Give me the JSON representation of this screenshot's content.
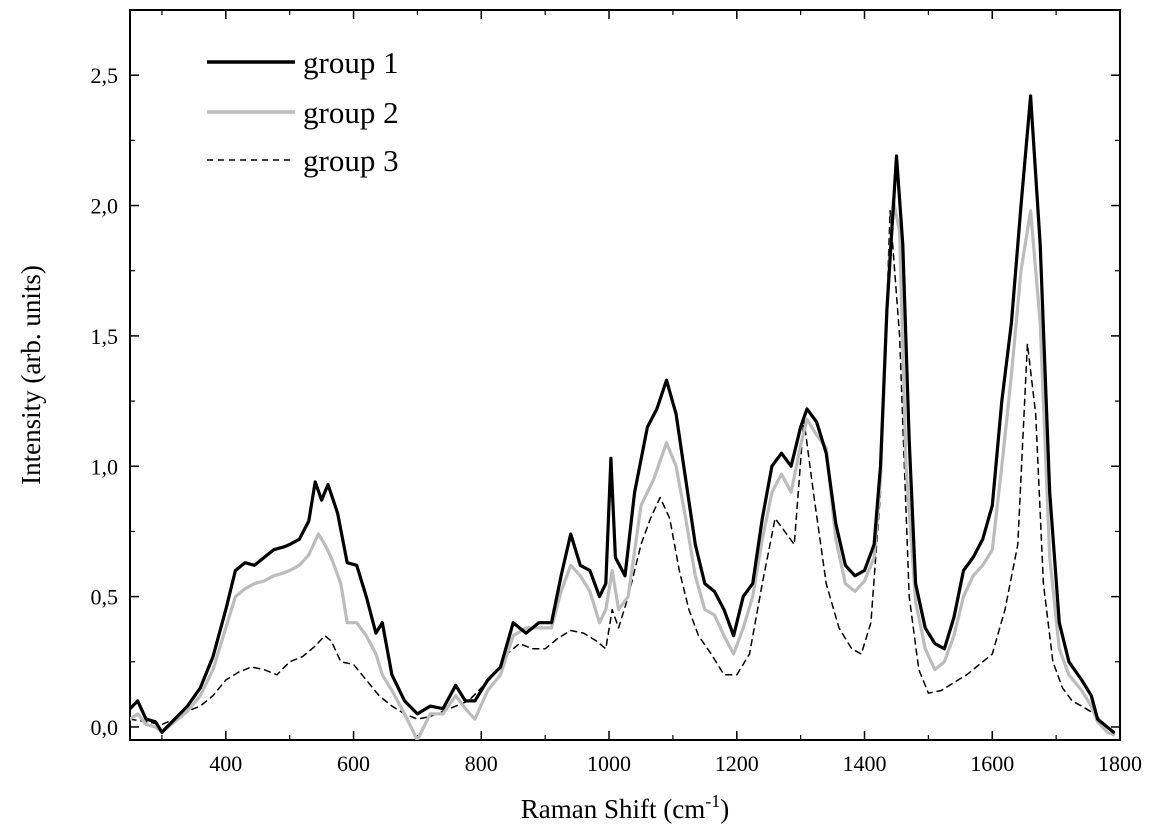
{
  "chart_data": {
    "type": "line",
    "xlabel_main": "Raman Shift (cm",
    "xlabel_sup": "-1",
    "xlabel_end": ")",
    "ylabel": "Intensity (arb. units)",
    "xlim": [
      250,
      1800
    ],
    "ylim": [
      -0.05,
      2.75
    ],
    "xticks": [
      400,
      600,
      800,
      1000,
      1200,
      1400,
      1600,
      1800
    ],
    "xtick_labels": [
      "400",
      "600",
      "800",
      "1000",
      "1200",
      "1400",
      "1600",
      "1800"
    ],
    "yticks": [
      0.0,
      0.5,
      1.0,
      1.5,
      2.0,
      2.5
    ],
    "ytick_labels": [
      "0,0",
      "0,5",
      "1,0",
      "1,5",
      "2,0",
      "2,5"
    ],
    "grid": false,
    "legend_position": "top-left",
    "series": [
      {
        "name": "group 1",
        "color": "#000000",
        "dash": "solid",
        "points": [
          [
            250,
            0.07
          ],
          [
            262,
            0.1
          ],
          [
            275,
            0.03
          ],
          [
            290,
            0.02
          ],
          [
            300,
            -0.02
          ],
          [
            320,
            0.03
          ],
          [
            340,
            0.08
          ],
          [
            360,
            0.15
          ],
          [
            380,
            0.27
          ],
          [
            400,
            0.45
          ],
          [
            415,
            0.6
          ],
          [
            430,
            0.63
          ],
          [
            445,
            0.62
          ],
          [
            460,
            0.65
          ],
          [
            475,
            0.68
          ],
          [
            490,
            0.69
          ],
          [
            500,
            0.7
          ],
          [
            515,
            0.72
          ],
          [
            530,
            0.79
          ],
          [
            540,
            0.94
          ],
          [
            550,
            0.87
          ],
          [
            560,
            0.93
          ],
          [
            575,
            0.82
          ],
          [
            590,
            0.63
          ],
          [
            605,
            0.62
          ],
          [
            620,
            0.5
          ],
          [
            635,
            0.36
          ],
          [
            645,
            0.4
          ],
          [
            660,
            0.2
          ],
          [
            680,
            0.1
          ],
          [
            700,
            0.05
          ],
          [
            720,
            0.08
          ],
          [
            740,
            0.07
          ],
          [
            760,
            0.16
          ],
          [
            775,
            0.1
          ],
          [
            790,
            0.1
          ],
          [
            810,
            0.18
          ],
          [
            830,
            0.23
          ],
          [
            850,
            0.4
          ],
          [
            870,
            0.36
          ],
          [
            890,
            0.4
          ],
          [
            910,
            0.4
          ],
          [
            925,
            0.58
          ],
          [
            940,
            0.74
          ],
          [
            955,
            0.62
          ],
          [
            970,
            0.6
          ],
          [
            985,
            0.5
          ],
          [
            995,
            0.55
          ],
          [
            1003,
            1.03
          ],
          [
            1010,
            0.65
          ],
          [
            1025,
            0.58
          ],
          [
            1040,
            0.9
          ],
          [
            1060,
            1.15
          ],
          [
            1075,
            1.22
          ],
          [
            1090,
            1.33
          ],
          [
            1105,
            1.2
          ],
          [
            1120,
            0.95
          ],
          [
            1135,
            0.7
          ],
          [
            1150,
            0.55
          ],
          [
            1165,
            0.52
          ],
          [
            1180,
            0.45
          ],
          [
            1195,
            0.35
          ],
          [
            1210,
            0.5
          ],
          [
            1225,
            0.55
          ],
          [
            1240,
            0.8
          ],
          [
            1255,
            1.0
          ],
          [
            1270,
            1.05
          ],
          [
            1285,
            1.0
          ],
          [
            1300,
            1.15
          ],
          [
            1310,
            1.22
          ],
          [
            1325,
            1.17
          ],
          [
            1340,
            1.05
          ],
          [
            1355,
            0.78
          ],
          [
            1370,
            0.62
          ],
          [
            1385,
            0.58
          ],
          [
            1400,
            0.6
          ],
          [
            1415,
            0.7
          ],
          [
            1425,
            1.0
          ],
          [
            1435,
            1.6
          ],
          [
            1450,
            2.19
          ],
          [
            1460,
            1.85
          ],
          [
            1470,
            1.1
          ],
          [
            1480,
            0.55
          ],
          [
            1495,
            0.38
          ],
          [
            1510,
            0.32
          ],
          [
            1525,
            0.3
          ],
          [
            1540,
            0.42
          ],
          [
            1555,
            0.6
          ],
          [
            1570,
            0.65
          ],
          [
            1585,
            0.72
          ],
          [
            1600,
            0.85
          ],
          [
            1615,
            1.25
          ],
          [
            1630,
            1.55
          ],
          [
            1645,
            2.0
          ],
          [
            1660,
            2.42
          ],
          [
            1675,
            1.85
          ],
          [
            1690,
            0.9
          ],
          [
            1705,
            0.4
          ],
          [
            1720,
            0.25
          ],
          [
            1740,
            0.18
          ],
          [
            1755,
            0.12
          ],
          [
            1765,
            0.03
          ],
          [
            1780,
            0.0
          ],
          [
            1790,
            -0.02
          ]
        ]
      },
      {
        "name": "group 2",
        "color": "#bcbcbc",
        "dash": "solid",
        "points": [
          [
            250,
            0.03
          ],
          [
            262,
            0.05
          ],
          [
            275,
            0.01
          ],
          [
            290,
            0.0
          ],
          [
            300,
            -0.02
          ],
          [
            320,
            0.02
          ],
          [
            340,
            0.06
          ],
          [
            360,
            0.12
          ],
          [
            380,
            0.22
          ],
          [
            400,
            0.38
          ],
          [
            415,
            0.5
          ],
          [
            430,
            0.53
          ],
          [
            445,
            0.55
          ],
          [
            460,
            0.56
          ],
          [
            475,
            0.58
          ],
          [
            490,
            0.59
          ],
          [
            500,
            0.6
          ],
          [
            515,
            0.62
          ],
          [
            530,
            0.66
          ],
          [
            545,
            0.74
          ],
          [
            555,
            0.7
          ],
          [
            565,
            0.65
          ],
          [
            580,
            0.55
          ],
          [
            590,
            0.4
          ],
          [
            605,
            0.4
          ],
          [
            620,
            0.35
          ],
          [
            635,
            0.28
          ],
          [
            645,
            0.2
          ],
          [
            660,
            0.14
          ],
          [
            680,
            0.05
          ],
          [
            700,
            -0.05
          ],
          [
            720,
            0.05
          ],
          [
            740,
            0.05
          ],
          [
            760,
            0.12
          ],
          [
            775,
            0.07
          ],
          [
            790,
            0.03
          ],
          [
            810,
            0.14
          ],
          [
            830,
            0.2
          ],
          [
            850,
            0.35
          ],
          [
            870,
            0.38
          ],
          [
            890,
            0.38
          ],
          [
            910,
            0.38
          ],
          [
            925,
            0.52
          ],
          [
            940,
            0.62
          ],
          [
            955,
            0.58
          ],
          [
            970,
            0.52
          ],
          [
            985,
            0.4
          ],
          [
            995,
            0.45
          ],
          [
            1005,
            0.6
          ],
          [
            1015,
            0.45
          ],
          [
            1030,
            0.5
          ],
          [
            1050,
            0.85
          ],
          [
            1070,
            0.95
          ],
          [
            1090,
            1.09
          ],
          [
            1105,
            1.0
          ],
          [
            1120,
            0.8
          ],
          [
            1135,
            0.58
          ],
          [
            1150,
            0.45
          ],
          [
            1165,
            0.43
          ],
          [
            1180,
            0.35
          ],
          [
            1195,
            0.28
          ],
          [
            1210,
            0.38
          ],
          [
            1225,
            0.5
          ],
          [
            1240,
            0.72
          ],
          [
            1255,
            0.9
          ],
          [
            1270,
            0.97
          ],
          [
            1285,
            0.9
          ],
          [
            1300,
            1.08
          ],
          [
            1310,
            1.18
          ],
          [
            1325,
            1.12
          ],
          [
            1340,
            1.07
          ],
          [
            1355,
            0.72
          ],
          [
            1370,
            0.55
          ],
          [
            1385,
            0.52
          ],
          [
            1400,
            0.56
          ],
          [
            1415,
            0.65
          ],
          [
            1425,
            0.95
          ],
          [
            1435,
            1.6
          ],
          [
            1445,
            2.02
          ],
          [
            1455,
            1.9
          ],
          [
            1465,
            1.0
          ],
          [
            1480,
            0.48
          ],
          [
            1495,
            0.3
          ],
          [
            1510,
            0.22
          ],
          [
            1525,
            0.25
          ],
          [
            1540,
            0.35
          ],
          [
            1555,
            0.5
          ],
          [
            1570,
            0.58
          ],
          [
            1585,
            0.62
          ],
          [
            1600,
            0.68
          ],
          [
            1615,
            1.0
          ],
          [
            1630,
            1.35
          ],
          [
            1645,
            1.75
          ],
          [
            1660,
            1.98
          ],
          [
            1675,
            1.55
          ],
          [
            1690,
            0.65
          ],
          [
            1705,
            0.3
          ],
          [
            1720,
            0.2
          ],
          [
            1740,
            0.14
          ],
          [
            1755,
            0.08
          ],
          [
            1765,
            0.02
          ],
          [
            1780,
            -0.02
          ],
          [
            1790,
            -0.03
          ]
        ]
      },
      {
        "name": "group 3",
        "color": "#000000",
        "dash": "dashed",
        "points": [
          [
            250,
            0.03
          ],
          [
            275,
            0.02
          ],
          [
            300,
            0.01
          ],
          [
            320,
            0.03
          ],
          [
            340,
            0.06
          ],
          [
            360,
            0.08
          ],
          [
            380,
            0.12
          ],
          [
            400,
            0.18
          ],
          [
            420,
            0.21
          ],
          [
            440,
            0.23
          ],
          [
            460,
            0.22
          ],
          [
            480,
            0.2
          ],
          [
            500,
            0.25
          ],
          [
            520,
            0.27
          ],
          [
            540,
            0.31
          ],
          [
            555,
            0.35
          ],
          [
            565,
            0.33
          ],
          [
            580,
            0.25
          ],
          [
            600,
            0.24
          ],
          [
            620,
            0.18
          ],
          [
            640,
            0.12
          ],
          [
            660,
            0.08
          ],
          [
            680,
            0.05
          ],
          [
            700,
            0.03
          ],
          [
            720,
            0.04
          ],
          [
            740,
            0.06
          ],
          [
            760,
            0.08
          ],
          [
            780,
            0.1
          ],
          [
            800,
            0.15
          ],
          [
            820,
            0.2
          ],
          [
            840,
            0.28
          ],
          [
            860,
            0.32
          ],
          [
            880,
            0.3
          ],
          [
            900,
            0.3
          ],
          [
            920,
            0.34
          ],
          [
            940,
            0.37
          ],
          [
            960,
            0.36
          ],
          [
            980,
            0.33
          ],
          [
            995,
            0.3
          ],
          [
            1005,
            0.45
          ],
          [
            1015,
            0.38
          ],
          [
            1030,
            0.5
          ],
          [
            1050,
            0.7
          ],
          [
            1065,
            0.8
          ],
          [
            1080,
            0.88
          ],
          [
            1095,
            0.8
          ],
          [
            1110,
            0.6
          ],
          [
            1125,
            0.45
          ],
          [
            1140,
            0.35
          ],
          [
            1160,
            0.28
          ],
          [
            1180,
            0.2
          ],
          [
            1200,
            0.2
          ],
          [
            1220,
            0.28
          ],
          [
            1240,
            0.55
          ],
          [
            1260,
            0.8
          ],
          [
            1275,
            0.75
          ],
          [
            1290,
            0.7
          ],
          [
            1305,
            1.18
          ],
          [
            1320,
            0.9
          ],
          [
            1340,
            0.55
          ],
          [
            1360,
            0.38
          ],
          [
            1380,
            0.3
          ],
          [
            1395,
            0.28
          ],
          [
            1410,
            0.4
          ],
          [
            1425,
            0.9
          ],
          [
            1440,
            1.98
          ],
          [
            1455,
            1.5
          ],
          [
            1470,
            0.5
          ],
          [
            1485,
            0.22
          ],
          [
            1500,
            0.13
          ],
          [
            1520,
            0.14
          ],
          [
            1540,
            0.17
          ],
          [
            1560,
            0.2
          ],
          [
            1580,
            0.24
          ],
          [
            1600,
            0.28
          ],
          [
            1620,
            0.45
          ],
          [
            1640,
            0.7
          ],
          [
            1655,
            1.47
          ],
          [
            1668,
            1.2
          ],
          [
            1680,
            0.55
          ],
          [
            1695,
            0.25
          ],
          [
            1710,
            0.15
          ],
          [
            1725,
            0.1
          ],
          [
            1740,
            0.08
          ],
          [
            1760,
            0.05
          ],
          [
            1780,
            0.0
          ],
          [
            1790,
            -0.02
          ]
        ]
      }
    ]
  }
}
